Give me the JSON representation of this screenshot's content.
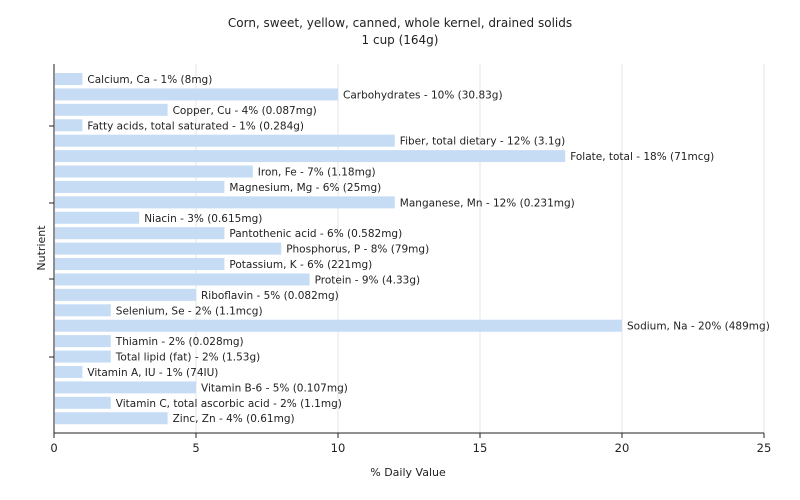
{
  "chart_data": {
    "type": "bar",
    "orientation": "horizontal",
    "title": "Corn, sweet, yellow, canned, whole kernel, drained solids",
    "subtitle": "1 cup (164g)",
    "xlabel": "% Daily Value",
    "ylabel": "Nutrient",
    "xlim": [
      0,
      25
    ],
    "xticks": [
      0,
      5,
      10,
      15,
      20,
      25
    ],
    "grid": true,
    "legend": "none",
    "bar_color": "#c6dcf5",
    "categories": [
      "Calcium, Ca",
      "Carbohydrates",
      "Copper, Cu",
      "Fatty acids, total saturated",
      "Fiber, total dietary",
      "Folate, total",
      "Iron, Fe",
      "Magnesium, Mg",
      "Manganese, Mn",
      "Niacin",
      "Pantothenic acid",
      "Phosphorus, P",
      "Potassium, K",
      "Protein",
      "Riboflavin",
      "Selenium, Se",
      "Sodium, Na",
      "Thiamin",
      "Total lipid (fat)",
      "Vitamin A, IU",
      "Vitamin B-6",
      "Vitamin C, total ascorbic acid",
      "Zinc, Zn"
    ],
    "values": [
      1,
      10,
      4,
      1,
      12,
      18,
      7,
      6,
      12,
      3,
      6,
      8,
      6,
      9,
      5,
      2,
      20,
      2,
      2,
      1,
      5,
      2,
      4
    ],
    "labels": [
      "Calcium, Ca - 1% (8mg)",
      "Carbohydrates - 10% (30.83g)",
      "Copper, Cu - 4% (0.087mg)",
      "Fatty acids, total saturated - 1% (0.284g)",
      "Fiber, total dietary - 12% (3.1g)",
      "Folate, total - 18% (71mcg)",
      "Iron, Fe - 7% (1.18mg)",
      "Magnesium, Mg - 6% (25mg)",
      "Manganese, Mn - 12% (0.231mg)",
      "Niacin - 3% (0.615mg)",
      "Pantothenic acid - 6% (0.582mg)",
      "Phosphorus, P - 8% (79mg)",
      "Potassium, K - 6% (221mg)",
      "Protein - 9% (4.33g)",
      "Riboflavin - 5% (0.082mg)",
      "Selenium, Se - 2% (1.1mcg)",
      "Sodium, Na - 20% (489mg)",
      "Thiamin - 2% (0.028mg)",
      "Total lipid (fat) - 2% (1.53g)",
      "Vitamin A, IU - 1% (74IU)",
      "Vitamin B-6 - 5% (0.107mg)",
      "Vitamin C, total ascorbic acid - 2% (1.1mg)",
      "Zinc, Zn - 4% (0.61mg)"
    ]
  }
}
